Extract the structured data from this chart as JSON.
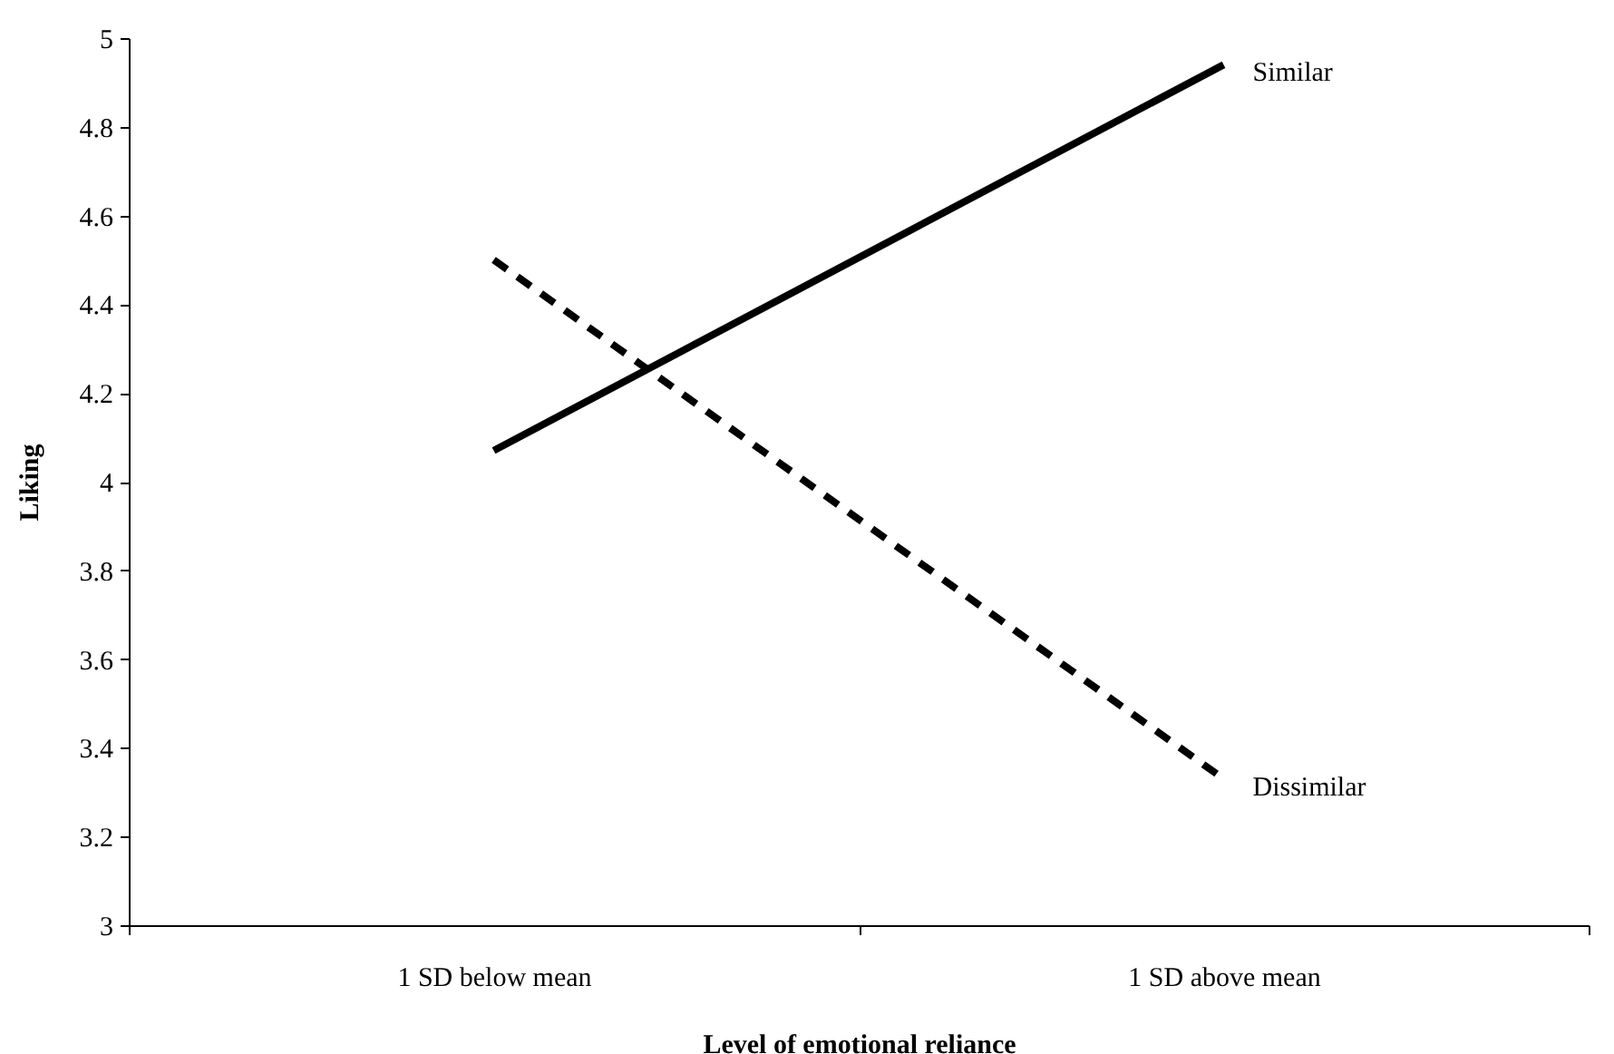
{
  "chart_data": {
    "type": "line",
    "xlabel": "Level of emotional reliance",
    "ylabel": "Liking",
    "categories": [
      "1 SD below mean",
      "1 SD above mean"
    ],
    "series": [
      {
        "name": "Similar",
        "color": "#000000",
        "line_style": "solid",
        "values": [
          4.07,
          4.94
        ]
      },
      {
        "name": "Dissimilar",
        "color": "#000000",
        "line_style": "dashed",
        "values": [
          4.5,
          3.33
        ]
      }
    ],
    "ylim": [
      3,
      5
    ],
    "yticks": [
      3,
      3.2,
      3.4,
      3.6,
      3.8,
      4,
      4.2,
      4.4,
      4.6,
      4.8,
      5
    ],
    "grid": false,
    "marker": "none"
  }
}
